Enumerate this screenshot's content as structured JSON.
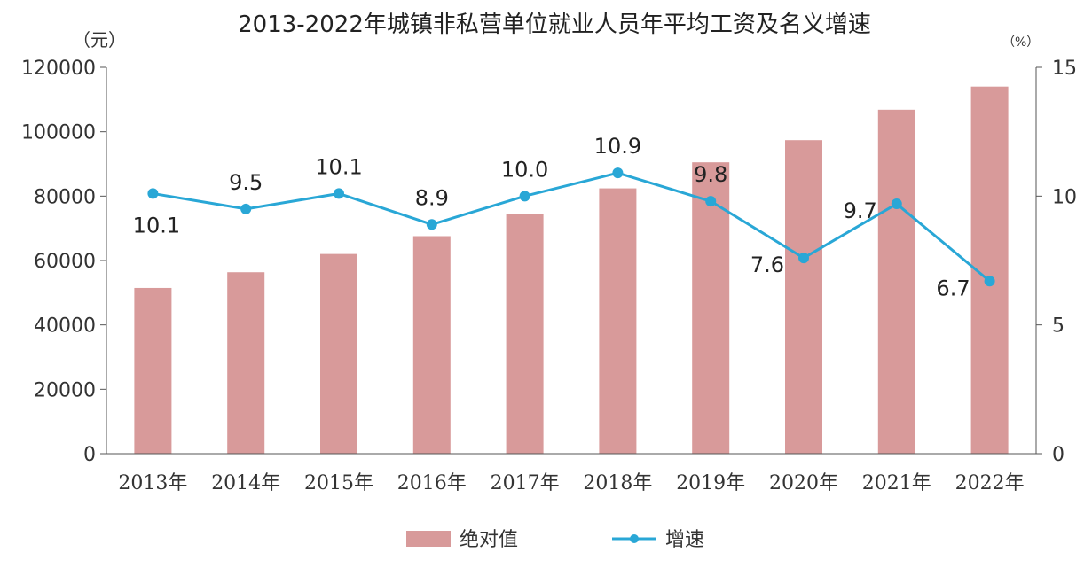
{
  "chart_data": {
    "type": "bar+line",
    "title": "2013-2022年城镇非私营单位就业人员年平均工资及名义增速",
    "left_unit": "（元）",
    "right_unit": "（%）",
    "categories": [
      "2013年",
      "2014年",
      "2015年",
      "2016年",
      "2017年",
      "2018年",
      "2019年",
      "2020年",
      "2021年",
      "2022年"
    ],
    "series": [
      {
        "name": "绝对值",
        "type": "bar",
        "axis": "left",
        "color": "#d89a9a",
        "values": [
          51483,
          56360,
          62029,
          67569,
          74318,
          82413,
          90501,
          97379,
          106837,
          114029
        ]
      },
      {
        "name": "增速",
        "type": "line",
        "axis": "right",
        "color": "#29a7d6",
        "values": [
          10.1,
          9.5,
          10.1,
          8.9,
          10.0,
          10.9,
          9.8,
          7.6,
          9.7,
          6.7
        ],
        "labels": [
          "10.1",
          "9.5",
          "10.1",
          "8.9",
          "10.0",
          "10.9",
          "9.8",
          "7.6",
          "9.7",
          "6.7"
        ],
        "label_positions": [
          "below",
          "above",
          "above",
          "above",
          "above",
          "above",
          "above",
          "left",
          "left",
          "left"
        ]
      }
    ],
    "y_left": {
      "min": 0,
      "max": 120000,
      "ticks": [
        "0",
        "20000",
        "40000",
        "60000",
        "80000",
        "100000",
        "120000"
      ]
    },
    "y_right": {
      "min": 0,
      "max": 15,
      "ticks": [
        "0",
        "5",
        "10",
        "15"
      ]
    },
    "legend": {
      "position": "bottom",
      "items": [
        "绝对值",
        "增速"
      ]
    }
  }
}
